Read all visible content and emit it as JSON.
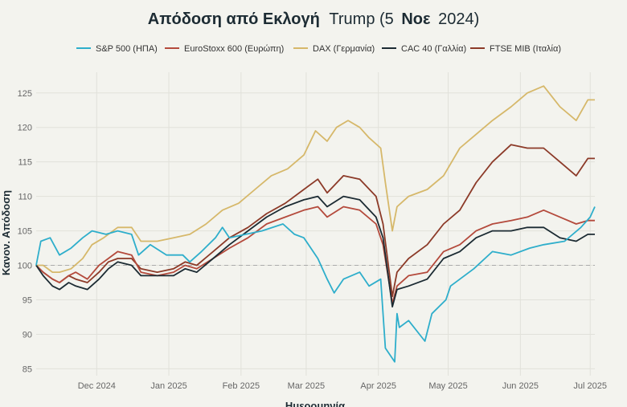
{
  "chart_data": {
    "type": "line",
    "title_bold": "Απόδοση από Εκλογή",
    "title_rest": "Trump (5",
    "title_bold2": "Νοε",
    "title_end": "2024)",
    "xlabel": "Ημερομηνία",
    "ylabel": "Κανον. Απόδοση",
    "ylim": [
      84,
      128
    ],
    "yticks": [
      85,
      90,
      95,
      100,
      105,
      110,
      115,
      120,
      125
    ],
    "x_start": "2024-11-05",
    "x_end": "2025-07-03",
    "xticks": [
      {
        "date": "2024-12-01",
        "label": "Dec 2024"
      },
      {
        "date": "2025-01-01",
        "label": "Jan 2025"
      },
      {
        "date": "2025-02-01",
        "label": "Feb 2025"
      },
      {
        "date": "2025-03-01",
        "label": "Mar 2025"
      },
      {
        "date": "2025-04-01",
        "label": "Apr 2025"
      },
      {
        "date": "2025-05-01",
        "label": "May 2025"
      },
      {
        "date": "2025-06-01",
        "label": "Jun 2025"
      },
      {
        "date": "2025-07-01",
        "label": "Jul 2025"
      }
    ],
    "reference_line": 100,
    "grid": true,
    "legend_position": "top",
    "series": [
      {
        "name": "S&P 500 (ΗΠΑ)",
        "color": "#2eaecb",
        "points": [
          [
            "2024-11-05",
            100
          ],
          [
            "2024-11-07",
            103.5
          ],
          [
            "2024-11-11",
            104
          ],
          [
            "2024-11-15",
            101.5
          ],
          [
            "2024-11-20",
            102.5
          ],
          [
            "2024-11-25",
            104
          ],
          [
            "2024-11-29",
            105
          ],
          [
            "2024-12-05",
            104.5
          ],
          [
            "2024-12-10",
            105
          ],
          [
            "2024-12-16",
            104.5
          ],
          [
            "2024-12-19",
            101.5
          ],
          [
            "2024-12-24",
            103
          ],
          [
            "2024-12-31",
            101.5
          ],
          [
            "2025-01-07",
            101.5
          ],
          [
            "2025-01-10",
            100.5
          ],
          [
            "2025-01-15",
            102
          ],
          [
            "2025-01-21",
            104
          ],
          [
            "2025-01-24",
            105.5
          ],
          [
            "2025-01-27",
            104
          ],
          [
            "2025-02-03",
            104.5
          ],
          [
            "2025-02-10",
            105
          ],
          [
            "2025-02-19",
            106
          ],
          [
            "2025-02-24",
            104.5
          ],
          [
            "2025-02-28",
            104
          ],
          [
            "2025-03-06",
            101
          ],
          [
            "2025-03-10",
            98
          ],
          [
            "2025-03-13",
            96
          ],
          [
            "2025-03-17",
            98
          ],
          [
            "2025-03-24",
            99
          ],
          [
            "2025-03-28",
            97
          ],
          [
            "2025-04-02",
            98
          ],
          [
            "2025-04-04",
            88
          ],
          [
            "2025-04-08",
            86
          ],
          [
            "2025-04-09",
            93
          ],
          [
            "2025-04-10",
            91
          ],
          [
            "2025-04-14",
            92
          ],
          [
            "2025-04-21",
            89
          ],
          [
            "2025-04-24",
            93
          ],
          [
            "2025-04-30",
            95
          ],
          [
            "2025-05-02",
            97
          ],
          [
            "2025-05-12",
            99.5
          ],
          [
            "2025-05-20",
            102
          ],
          [
            "2025-05-28",
            101.5
          ],
          [
            "2025-06-05",
            102.5
          ],
          [
            "2025-06-11",
            103
          ],
          [
            "2025-06-20",
            103.5
          ],
          [
            "2025-06-27",
            105.5
          ],
          [
            "2025-07-01",
            107
          ],
          [
            "2025-07-03",
            108.5
          ]
        ]
      },
      {
        "name": "EuroStoxx 600 (Ευρώπη)",
        "color": "#b44a3c",
        "points": [
          [
            "2024-11-05",
            100
          ],
          [
            "2024-11-08",
            99
          ],
          [
            "2024-11-12",
            98
          ],
          [
            "2024-11-15",
            97.5
          ],
          [
            "2024-11-19",
            98.5
          ],
          [
            "2024-11-22",
            99
          ],
          [
            "2024-11-27",
            98
          ],
          [
            "2024-12-02",
            100
          ],
          [
            "2024-12-06",
            101
          ],
          [
            "2024-12-10",
            102
          ],
          [
            "2024-12-16",
            101.5
          ],
          [
            "2024-12-20",
            99
          ],
          [
            "2024-12-27",
            98.5
          ],
          [
            "2025-01-03",
            99
          ],
          [
            "2025-01-08",
            100
          ],
          [
            "2025-01-13",
            99.5
          ],
          [
            "2025-01-20",
            101
          ],
          [
            "2025-01-27",
            102.5
          ],
          [
            "2025-02-04",
            104
          ],
          [
            "2025-02-12",
            106
          ],
          [
            "2025-02-20",
            107
          ],
          [
            "2025-02-28",
            108
          ],
          [
            "2025-03-06",
            108.5
          ],
          [
            "2025-03-10",
            107
          ],
          [
            "2025-03-17",
            108.5
          ],
          [
            "2025-03-24",
            108
          ],
          [
            "2025-03-31",
            106
          ],
          [
            "2025-04-03",
            103
          ],
          [
            "2025-04-07",
            94.5
          ],
          [
            "2025-04-09",
            97
          ],
          [
            "2025-04-14",
            98.5
          ],
          [
            "2025-04-22",
            99
          ],
          [
            "2025-04-29",
            102
          ],
          [
            "2025-05-06",
            103
          ],
          [
            "2025-05-13",
            105
          ],
          [
            "2025-05-20",
            106
          ],
          [
            "2025-05-28",
            106.5
          ],
          [
            "2025-06-04",
            107
          ],
          [
            "2025-06-11",
            108
          ],
          [
            "2025-06-18",
            107
          ],
          [
            "2025-06-25",
            106
          ],
          [
            "2025-06-30",
            106.5
          ],
          [
            "2025-07-03",
            106.5
          ]
        ]
      },
      {
        "name": "DAX (Γερμανία)",
        "color": "#d6b86a",
        "points": [
          [
            "2024-11-05",
            100
          ],
          [
            "2024-11-08",
            100
          ],
          [
            "2024-11-12",
            99
          ],
          [
            "2024-11-15",
            99
          ],
          [
            "2024-11-20",
            99.5
          ],
          [
            "2024-11-25",
            101
          ],
          [
            "2024-11-29",
            103
          ],
          [
            "2024-12-04",
            104
          ],
          [
            "2024-12-10",
            105.5
          ],
          [
            "2024-12-16",
            105.5
          ],
          [
            "2024-12-20",
            103.5
          ],
          [
            "2024-12-27",
            103.5
          ],
          [
            "2025-01-03",
            104
          ],
          [
            "2025-01-10",
            104.5
          ],
          [
            "2025-01-17",
            106
          ],
          [
            "2025-01-24",
            108
          ],
          [
            "2025-01-31",
            109
          ],
          [
            "2025-02-07",
            111
          ],
          [
            "2025-02-14",
            113
          ],
          [
            "2025-02-21",
            114
          ],
          [
            "2025-02-28",
            116
          ],
          [
            "2025-03-05",
            119.5
          ],
          [
            "2025-03-10",
            118
          ],
          [
            "2025-03-14",
            120
          ],
          [
            "2025-03-19",
            121
          ],
          [
            "2025-03-24",
            120
          ],
          [
            "2025-03-28",
            118.5
          ],
          [
            "2025-04-02",
            117
          ],
          [
            "2025-04-04",
            112
          ],
          [
            "2025-04-07",
            105
          ],
          [
            "2025-04-09",
            108.5
          ],
          [
            "2025-04-14",
            110
          ],
          [
            "2025-04-22",
            111
          ],
          [
            "2025-04-29",
            113
          ],
          [
            "2025-05-06",
            117
          ],
          [
            "2025-05-13",
            119
          ],
          [
            "2025-05-20",
            121
          ],
          [
            "2025-05-28",
            123
          ],
          [
            "2025-06-04",
            125
          ],
          [
            "2025-06-11",
            126
          ],
          [
            "2025-06-18",
            123
          ],
          [
            "2025-06-25",
            121
          ],
          [
            "2025-06-30",
            124
          ],
          [
            "2025-07-03",
            124
          ]
        ]
      },
      {
        "name": "CAC 40 (Γαλλία)",
        "color": "#1c2b33",
        "points": [
          [
            "2024-11-05",
            100
          ],
          [
            "2024-11-08",
            98.5
          ],
          [
            "2024-11-12",
            97
          ],
          [
            "2024-11-15",
            96.5
          ],
          [
            "2024-11-19",
            97.5
          ],
          [
            "2024-11-22",
            97
          ],
          [
            "2024-11-27",
            96.5
          ],
          [
            "2024-12-02",
            98
          ],
          [
            "2024-12-06",
            99.5
          ],
          [
            "2024-12-10",
            100.5
          ],
          [
            "2024-12-16",
            100
          ],
          [
            "2024-12-20",
            98.5
          ],
          [
            "2024-12-27",
            98.5
          ],
          [
            "2025-01-03",
            98.5
          ],
          [
            "2025-01-08",
            99.5
          ],
          [
            "2025-01-13",
            99
          ],
          [
            "2025-01-20",
            101
          ],
          [
            "2025-01-27",
            103
          ],
          [
            "2025-02-04",
            105
          ],
          [
            "2025-02-12",
            107
          ],
          [
            "2025-02-20",
            108.5
          ],
          [
            "2025-02-28",
            109.5
          ],
          [
            "2025-03-06",
            110
          ],
          [
            "2025-03-10",
            108.5
          ],
          [
            "2025-03-17",
            110
          ],
          [
            "2025-03-24",
            109.5
          ],
          [
            "2025-03-31",
            107
          ],
          [
            "2025-04-03",
            104
          ],
          [
            "2025-04-07",
            94
          ],
          [
            "2025-04-09",
            96.5
          ],
          [
            "2025-04-14",
            97
          ],
          [
            "2025-04-22",
            98
          ],
          [
            "2025-04-29",
            101
          ],
          [
            "2025-05-06",
            102
          ],
          [
            "2025-05-13",
            104
          ],
          [
            "2025-05-20",
            105
          ],
          [
            "2025-05-28",
            105
          ],
          [
            "2025-06-04",
            105.5
          ],
          [
            "2025-06-11",
            105.5
          ],
          [
            "2025-06-18",
            104
          ],
          [
            "2025-06-25",
            103.5
          ],
          [
            "2025-06-30",
            104.5
          ],
          [
            "2025-07-03",
            104.5
          ]
        ]
      },
      {
        "name": "FTSE MIB (Ιταλία)",
        "color": "#8c3a28",
        "points": [
          [
            "2024-11-05",
            100
          ],
          [
            "2024-11-08",
            99
          ],
          [
            "2024-11-12",
            98
          ],
          [
            "2024-11-15",
            97.5
          ],
          [
            "2024-11-19",
            98.5
          ],
          [
            "2024-11-22",
            98
          ],
          [
            "2024-11-27",
            97.5
          ],
          [
            "2024-12-02",
            99
          ],
          [
            "2024-12-06",
            100.5
          ],
          [
            "2024-12-10",
            101
          ],
          [
            "2024-12-16",
            101
          ],
          [
            "2024-12-20",
            99.5
          ],
          [
            "2024-12-27",
            99
          ],
          [
            "2025-01-03",
            99.5
          ],
          [
            "2025-01-08",
            100.5
          ],
          [
            "2025-01-13",
            100
          ],
          [
            "2025-01-20",
            102
          ],
          [
            "2025-01-27",
            104
          ],
          [
            "2025-02-04",
            105.5
          ],
          [
            "2025-02-12",
            107.5
          ],
          [
            "2025-02-20",
            109
          ],
          [
            "2025-02-28",
            111
          ],
          [
            "2025-03-06",
            112.5
          ],
          [
            "2025-03-10",
            110.5
          ],
          [
            "2025-03-17",
            113
          ],
          [
            "2025-03-24",
            112.5
          ],
          [
            "2025-03-31",
            110
          ],
          [
            "2025-04-03",
            106
          ],
          [
            "2025-04-07",
            95.5
          ],
          [
            "2025-04-09",
            99
          ],
          [
            "2025-04-14",
            101
          ],
          [
            "2025-04-22",
            103
          ],
          [
            "2025-04-29",
            106
          ],
          [
            "2025-05-06",
            108
          ],
          [
            "2025-05-13",
            112
          ],
          [
            "2025-05-20",
            115
          ],
          [
            "2025-05-28",
            117.5
          ],
          [
            "2025-06-04",
            117
          ],
          [
            "2025-06-11",
            117
          ],
          [
            "2025-06-18",
            115
          ],
          [
            "2025-06-25",
            113
          ],
          [
            "2025-06-30",
            115.5
          ],
          [
            "2025-07-03",
            115.5
          ]
        ]
      }
    ]
  }
}
